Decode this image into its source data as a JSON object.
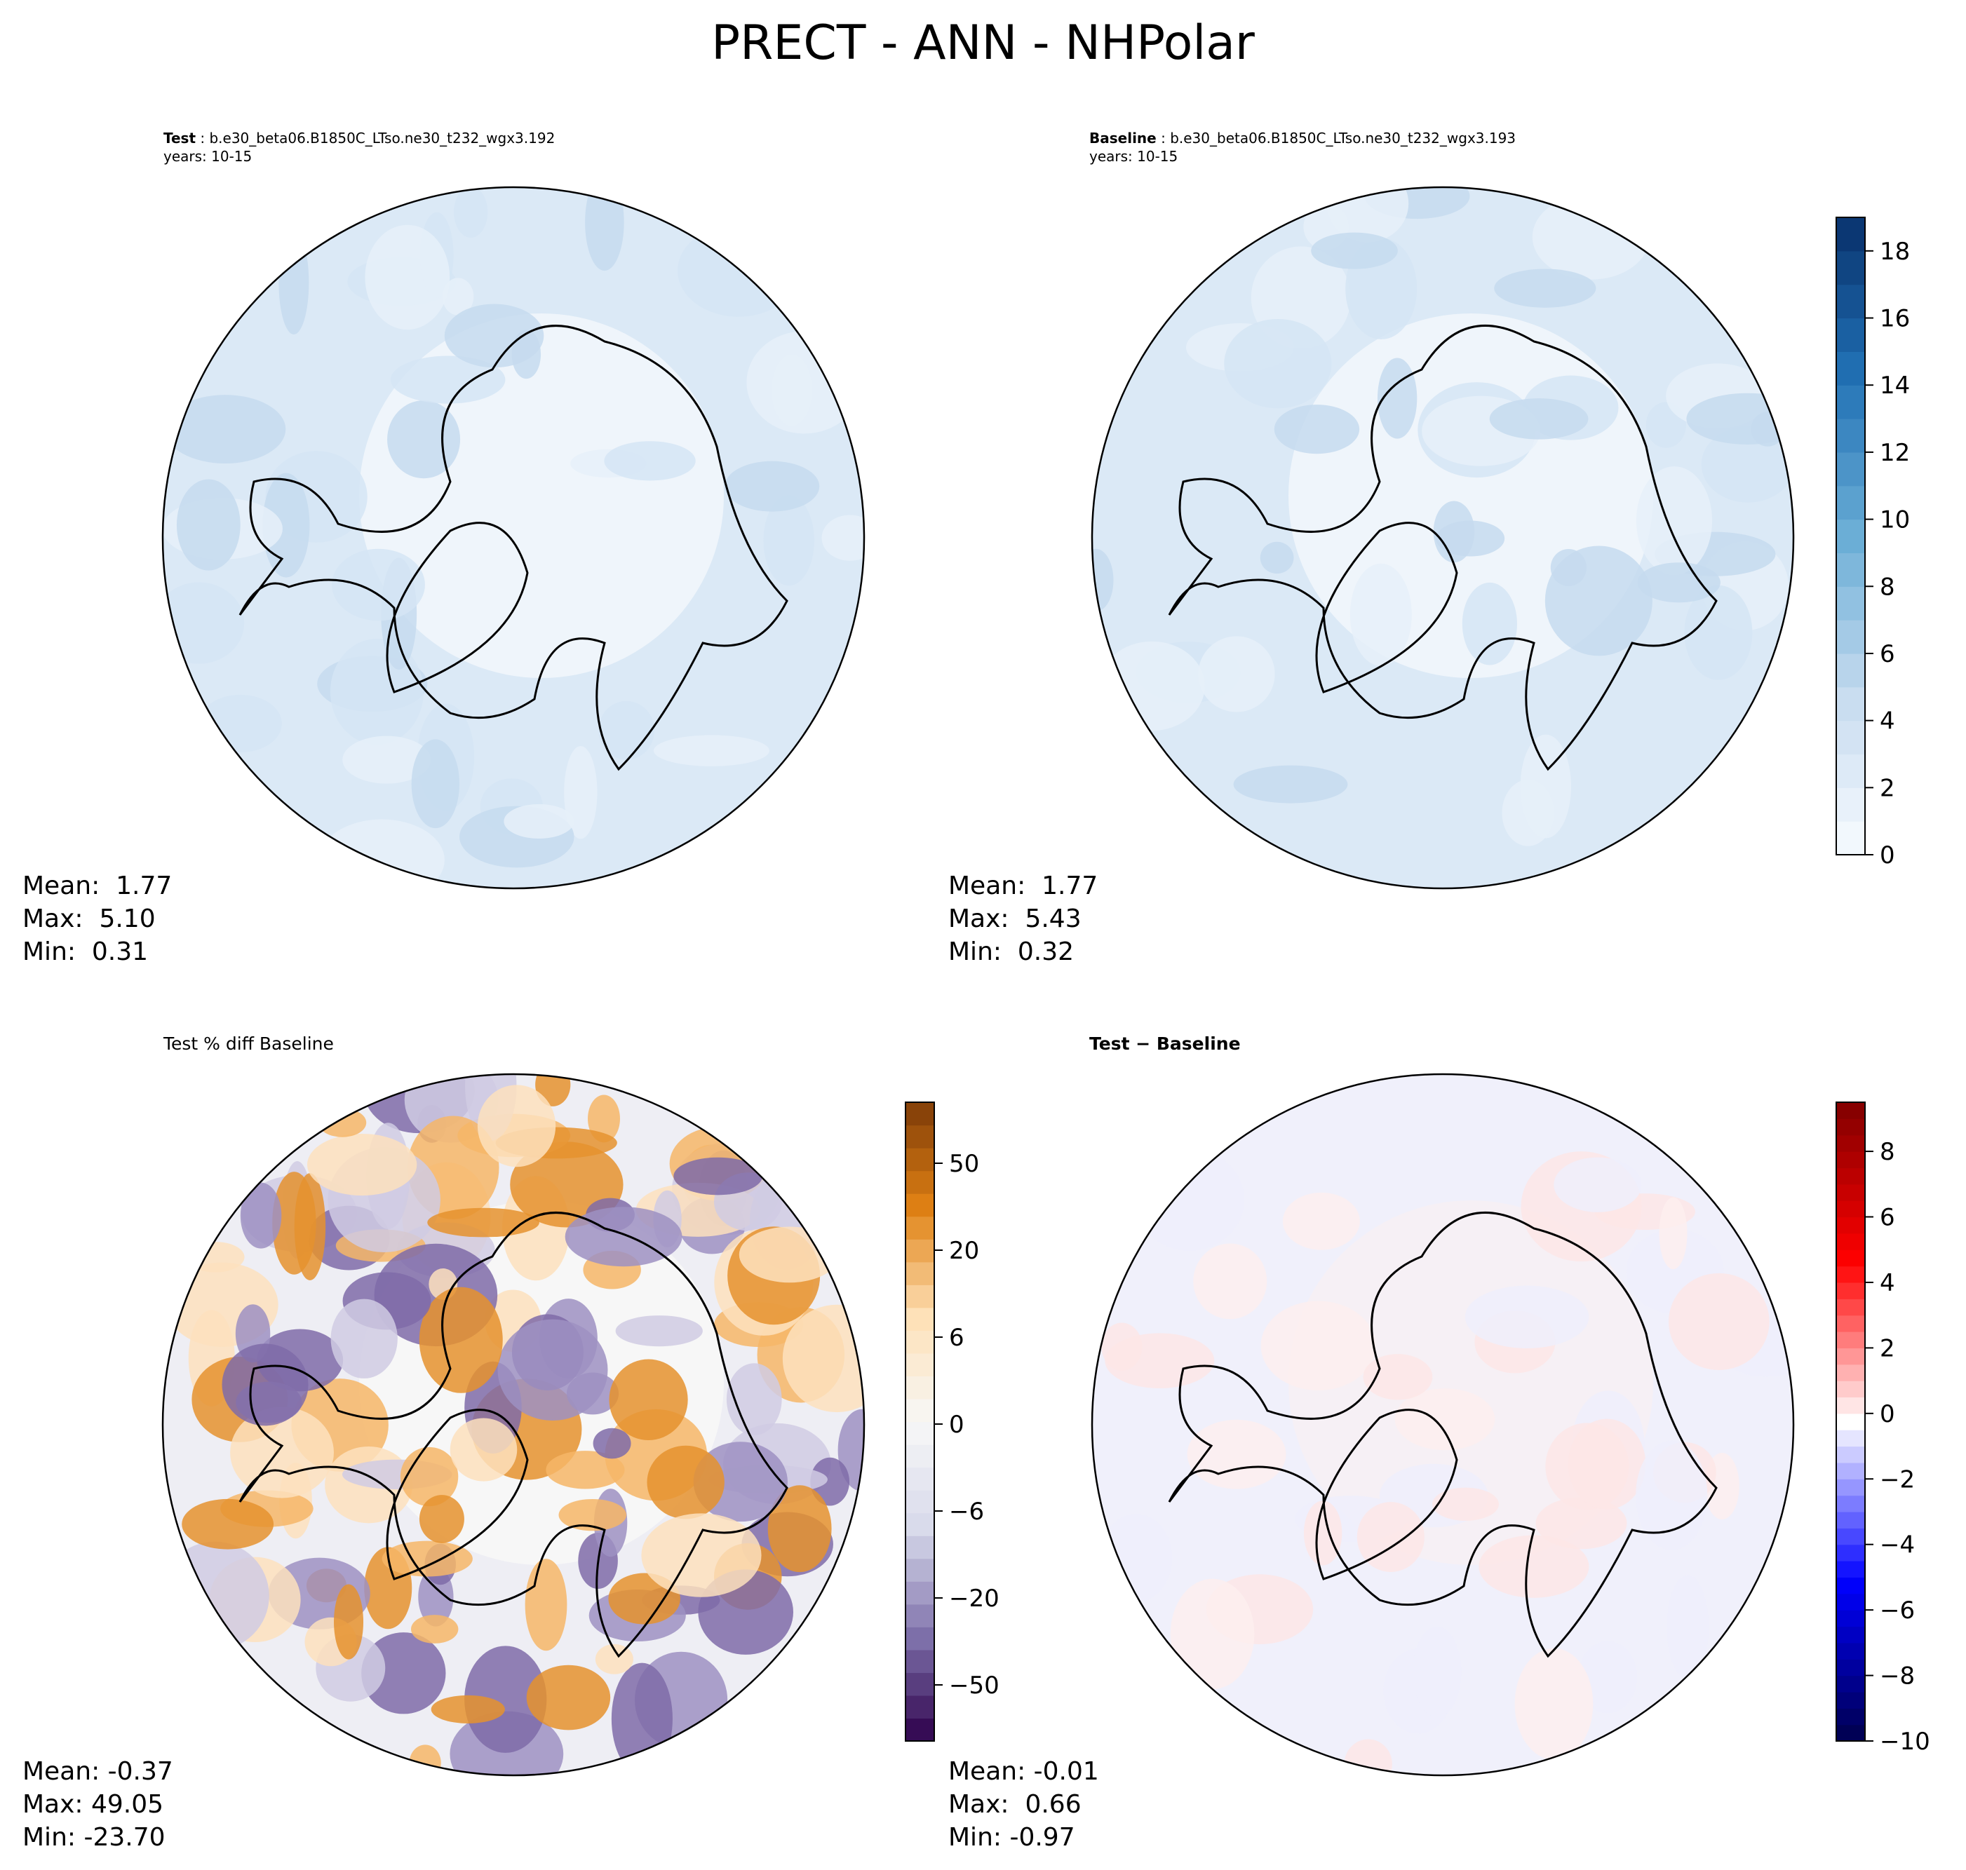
{
  "title": "PRECT - ANN - NHPolar",
  "panels": [
    {
      "label_bold": "Test",
      "label_rest": " : b.e30_beta06.B1850C_LTso.ne30_t232_wgx3.192",
      "years": "years: 10-15",
      "stats": {
        "mean": "Mean:  1.77",
        "max": "Max:  5.10",
        "min": "Min:  0.31"
      }
    },
    {
      "label_bold": "Baseline",
      "label_rest": " : b.e30_beta06.B1850C_LTso.ne30_t232_wgx3.193",
      "years": "years: 10-15",
      "stats": {
        "mean": "Mean:  1.77",
        "max": "Max:  5.43",
        "min": "Min:  0.32"
      }
    },
    {
      "label_bold": "",
      "label_rest": "Test % diff Baseline",
      "years": "",
      "stats": {
        "mean": "Mean: -0.37",
        "max": "Max: 49.05",
        "min": "Min: -23.70"
      }
    },
    {
      "label_bold": "Test − Baseline",
      "label_rest": "",
      "years": "",
      "stats": {
        "mean": "Mean: -0.01",
        "max": "Max:  0.66",
        "min": "Min: -0.97"
      }
    }
  ],
  "chart_data": [
    {
      "type": "heatmap",
      "projection": "north-polar-stereographic",
      "colormap": "Blues",
      "colorbar": {
        "range": [
          0,
          19
        ],
        "ticks": [
          0,
          2,
          4,
          6,
          8,
          10,
          12,
          14,
          16,
          18
        ],
        "colors": [
          "#f7fbff",
          "#08306b"
        ]
      }
    },
    {
      "type": "heatmap",
      "projection": "north-polar-stereographic",
      "colormap": "Blues",
      "shares_colorbar_with": 0
    },
    {
      "type": "heatmap",
      "projection": "north-polar-stereographic",
      "colormap": "PuOr_r",
      "colorbar": {
        "ticks": [
          -50,
          -20,
          -6,
          0,
          6,
          20,
          50
        ],
        "colors": [
          "#2d004b",
          "#f7f7f7",
          "#7f3b08"
        ]
      }
    },
    {
      "type": "heatmap",
      "projection": "north-polar-stereographic",
      "colormap": "seismic",
      "colorbar": {
        "range": [
          -10,
          9.5
        ],
        "ticks": [
          -10,
          -8,
          -6,
          -4,
          -2,
          0,
          2,
          4,
          6,
          8
        ],
        "colors": [
          "#00004c",
          "#0000ff",
          "#ffffff",
          "#ff0000",
          "#800000"
        ]
      }
    }
  ]
}
